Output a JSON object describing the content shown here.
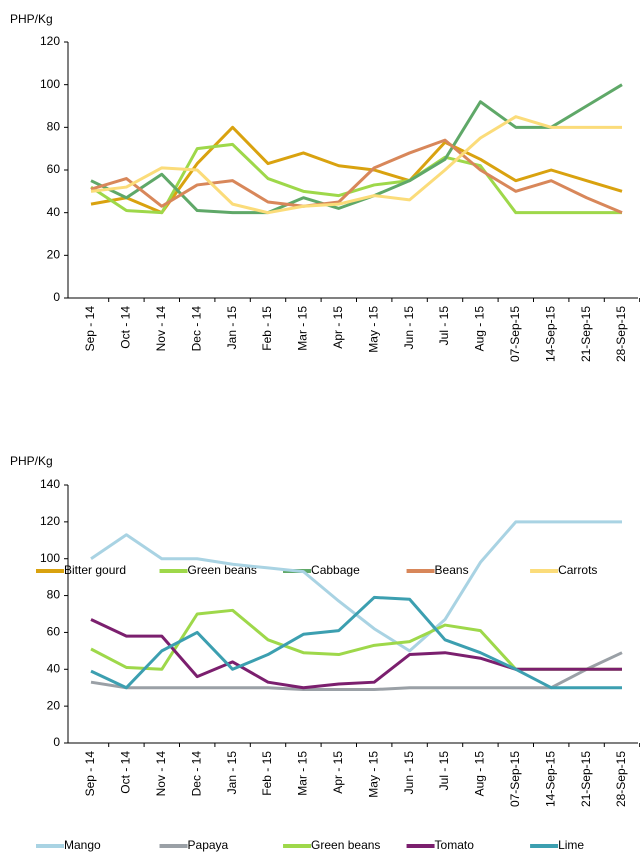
{
  "chart_data": [
    {
      "type": "line",
      "y_label": "PHP/Kg",
      "categories": [
        "Sep - 14",
        "Oct - 14",
        "Nov - 14",
        "Dec - 14",
        "Jan - 15",
        "Feb - 15",
        "Mar - 15",
        "Apr - 15",
        "May - 15",
        "Jun - 15",
        "Jul - 15",
        "Aug - 15",
        "07-Sep-15",
        "14-Sep-15",
        "21-Sep-15",
        "28-Sep-15"
      ],
      "ylim": [
        0,
        120
      ],
      "yticks": [
        0,
        20,
        40,
        60,
        80,
        100,
        120
      ],
      "legend": "bottom",
      "series": [
        {
          "name": "Bitter gourd",
          "color": "#d9a20f",
          "values": [
            44,
            47,
            40,
            63,
            80,
            63,
            68,
            62,
            60,
            55,
            73,
            65,
            55,
            60,
            55,
            50
          ]
        },
        {
          "name": "Green beans",
          "color": "#9ed84a",
          "values": [
            52,
            41,
            40,
            70,
            72,
            56,
            50,
            48,
            53,
            55,
            66,
            62,
            40,
            40,
            40,
            40
          ]
        },
        {
          "name": "Cabbage",
          "color": "#5fa868",
          "values": [
            55,
            47,
            58,
            41,
            40,
            40,
            47,
            42,
            48,
            55,
            65,
            92,
            80,
            80,
            90,
            100
          ]
        },
        {
          "name": "Beans",
          "color": "#d8875a",
          "values": [
            51,
            56,
            43,
            53,
            55,
            45,
            43,
            45,
            61,
            68,
            74,
            60,
            50,
            55,
            47,
            40
          ]
        },
        {
          "name": "Carrots",
          "color": "#fbdc7a",
          "values": [
            50,
            52,
            61,
            60,
            44,
            40,
            43,
            44,
            48,
            46,
            60,
            75,
            85,
            80,
            80,
            80
          ]
        }
      ]
    },
    {
      "type": "line",
      "y_label": "PHP/Kg",
      "categories": [
        "Sep - 14",
        "Oct - 14",
        "Nov - 14",
        "Dec - 14",
        "Jan - 15",
        "Feb - 15",
        "Mar - 15",
        "Apr - 15",
        "May - 15",
        "Jun - 15",
        "Jul - 15",
        "Aug - 15",
        "07-Sep-15",
        "14-Sep-15",
        "21-Sep-15",
        "28-Sep-15"
      ],
      "ylim": [
        0,
        140
      ],
      "yticks": [
        0,
        20,
        40,
        60,
        80,
        100,
        120,
        140
      ],
      "legend": "bottom",
      "series": [
        {
          "name": "Mango",
          "color": "#a9d3e3",
          "values": [
            100,
            113,
            100,
            100,
            97,
            95,
            93,
            77,
            62,
            50,
            67,
            98,
            120,
            120,
            120,
            120
          ]
        },
        {
          "name": "Papaya",
          "color": "#9aa0a6",
          "values": [
            33,
            30,
            30,
            30,
            30,
            30,
            29,
            29,
            29,
            30,
            30,
            30,
            30,
            30,
            40,
            49
          ]
        },
        {
          "name": "Green beans",
          "color": "#9ed84a",
          "values": [
            51,
            41,
            40,
            70,
            72,
            56,
            49,
            48,
            53,
            55,
            64,
            61,
            40,
            40,
            40,
            40
          ]
        },
        {
          "name": "Tomato",
          "color": "#7b1f6e",
          "values": [
            67,
            58,
            58,
            36,
            44,
            33,
            30,
            32,
            33,
            48,
            49,
            46,
            40,
            40,
            40,
            40
          ]
        },
        {
          "name": "Lime",
          "color": "#3c9fb0",
          "values": [
            39,
            30,
            50,
            60,
            40,
            48,
            59,
            61,
            79,
            78,
            56,
            49,
            40,
            30,
            30,
            30
          ]
        }
      ]
    }
  ]
}
